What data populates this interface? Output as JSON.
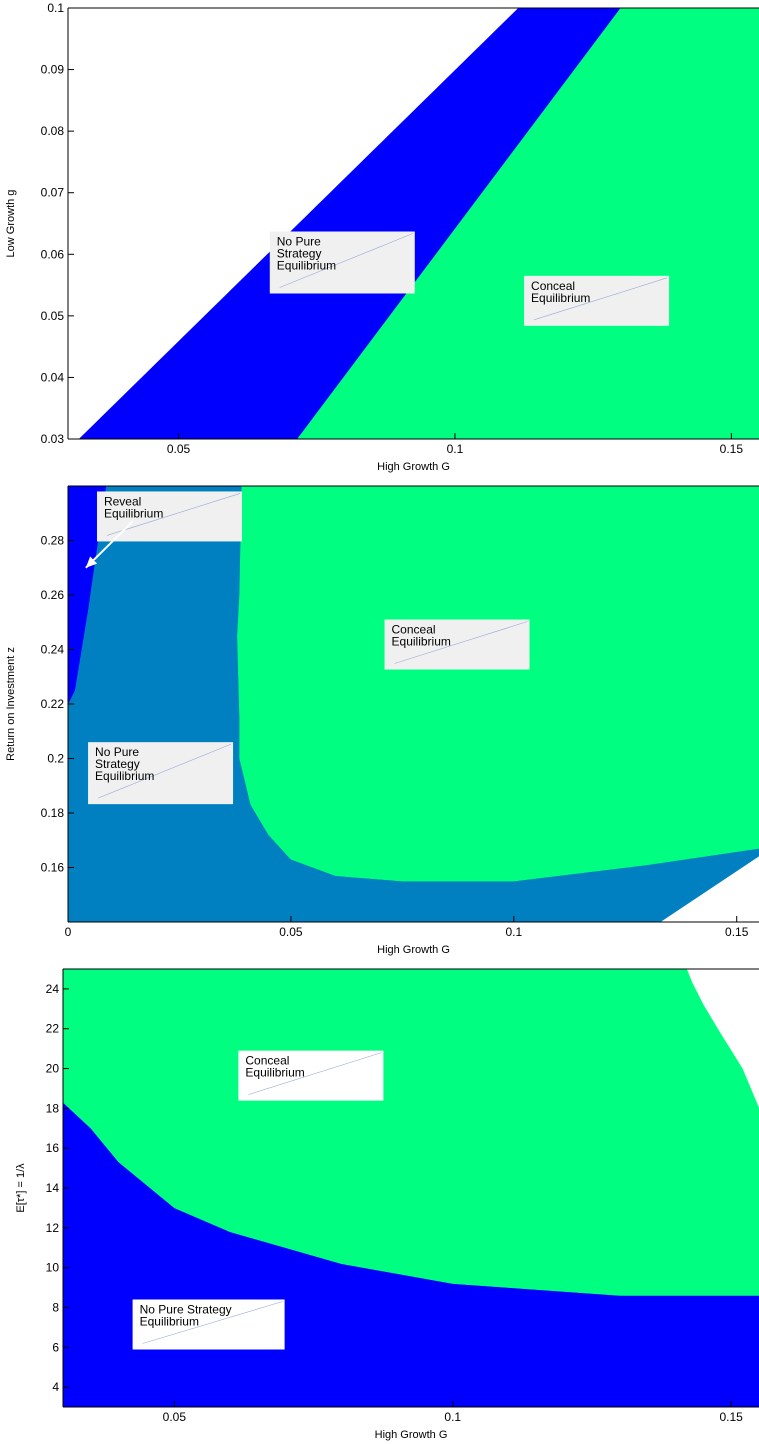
{
  "colors": {
    "conceal": "#00ff80",
    "no_pure_blue": "#0000ff",
    "no_pure_teal": "#0080c0",
    "reveal": "#0000ff",
    "label_box": "#f0f0f0",
    "label_box_white": "#ffffff"
  },
  "chart_data": [
    {
      "type": "heatmap",
      "title": "",
      "xlabel": "High Growth G",
      "ylabel": "Low Growth g",
      "xlim": [
        0.03,
        0.155
      ],
      "ylim": [
        0.03,
        0.1
      ],
      "xticks": [
        "0.05",
        "0.1",
        "0.15"
      ],
      "yticks": [
        "0.03",
        "0.04",
        "0.05",
        "0.06",
        "0.07",
        "0.08",
        "0.09",
        "0.1"
      ],
      "regions": [
        {
          "name": "No Pure Strategy Equilibrium",
          "color": "#0000ff",
          "polygon": [
            [
              0.032,
              0.03
            ],
            [
              0.0715,
              0.03
            ],
            [
              0.13,
              0.1
            ],
            [
              0.1115,
              0.1
            ]
          ]
        },
        {
          "name": "Conceal Equilibrium",
          "color": "#00ff80",
          "polygon": [
            [
              0.0715,
              0.03
            ],
            [
              0.155,
              0.03
            ],
            [
              0.155,
              0.1
            ],
            [
              0.13,
              0.1
            ]
          ]
        }
      ],
      "annotations": [
        {
          "lines": [
            "No Pure",
            "Strategy",
            "Equilibrium"
          ],
          "x": 0.0665,
          "y": 0.0637
        },
        {
          "lines": [
            "Conceal",
            "Equilibrium"
          ],
          "x": 0.1125,
          "y": 0.0565
        }
      ]
    },
    {
      "type": "heatmap",
      "title": "",
      "xlabel": "High Growth G",
      "ylabel": "Return on Investment z",
      "xlim": [
        0,
        0.155
      ],
      "ylim": [
        0.14,
        0.3
      ],
      "xticks": [
        "0",
        "0.05",
        "0.1",
        "0.15"
      ],
      "yticks": [
        "0.16",
        "0.18",
        "0.2",
        "0.22",
        "0.24",
        "0.26",
        "0.28"
      ],
      "regions": [
        {
          "name": "No Pure Strategy Equilibrium",
          "color": "#0080c0",
          "polygon": [
            [
              0,
              0.14
            ],
            [
              0,
              0.3
            ],
            [
              0.155,
              0.3
            ],
            [
              0.155,
              0.14
            ]
          ]
        },
        {
          "name": "Reveal Equilibrium",
          "color": "#0000ff",
          "polygon": [
            [
              0,
              0.22
            ],
            [
              0,
              0.3
            ],
            [
              0.0085,
              0.3
            ],
            [
              0.007,
              0.283
            ],
            [
              0.006,
              0.272
            ],
            [
              0.0045,
              0.255
            ],
            [
              0.003,
              0.24
            ],
            [
              0.0015,
              0.225
            ]
          ]
        },
        {
          "name": "Conceal Equilibrium",
          "color": "#00ff80",
          "polygon": [
            [
              0.039,
              0.3
            ],
            [
              0.155,
              0.3
            ],
            [
              0.155,
              0.167
            ],
            [
              0.13,
              0.161
            ],
            [
              0.1,
              0.155
            ],
            [
              0.075,
              0.155
            ],
            [
              0.06,
              0.157
            ],
            [
              0.05,
              0.163
            ],
            [
              0.045,
              0.172
            ],
            [
              0.041,
              0.183
            ],
            [
              0.0385,
              0.2
            ],
            [
              0.0385,
              0.215
            ],
            [
              0.038,
              0.245
            ],
            [
              0.0385,
              0.26
            ]
          ]
        },
        {
          "name": "blank",
          "color": "#ffffff",
          "polygon": [
            [
              0.133,
              0.14
            ],
            [
              0.155,
              0.14
            ],
            [
              0.155,
              0.164
            ]
          ]
        }
      ],
      "annotations": [
        {
          "lines": [
            "Reveal",
            "Equilibrium"
          ],
          "x": 0.0065,
          "y": 0.298
        },
        {
          "lines": [
            "Conceal",
            "Equilibrium"
          ],
          "x": 0.071,
          "y": 0.251
        },
        {
          "lines": [
            "No Pure",
            "Strategy",
            "Equilibrium"
          ],
          "x": 0.0045,
          "y": 0.206
        }
      ],
      "arrows": [
        {
          "from": [
            0.0145,
            0.287
          ],
          "to": [
            0.004,
            0.27
          ]
        }
      ]
    },
    {
      "type": "heatmap",
      "title": "",
      "xlabel": "High Growth G",
      "ylabel": "E[τ*] = 1/λ",
      "xlim": [
        0.03,
        0.155
      ],
      "ylim": [
        3,
        25
      ],
      "xticks": [
        "0.05",
        "0.1",
        "0.15"
      ],
      "yticks": [
        "4",
        "6",
        "8",
        "10",
        "12",
        "14",
        "16",
        "18",
        "20",
        "22",
        "24"
      ],
      "regions": [
        {
          "name": "No Pure Strategy Equilibrium",
          "color": "#0000ff",
          "polygon": [
            [
              0.03,
              3
            ],
            [
              0.155,
              3
            ],
            [
              0.155,
              8.6
            ],
            [
              0.13,
              8.6
            ],
            [
              0.1,
              9.2
            ],
            [
              0.08,
              10.2
            ],
            [
              0.06,
              11.8
            ],
            [
              0.05,
              13
            ],
            [
              0.04,
              15.3
            ],
            [
              0.035,
              17
            ],
            [
              0.03,
              18.3
            ]
          ]
        },
        {
          "name": "Conceal Equilibrium",
          "color": "#00ff80",
          "polygon": [
            [
              0.03,
              18.3
            ],
            [
              0.035,
              17
            ],
            [
              0.04,
              15.3
            ],
            [
              0.05,
              13
            ],
            [
              0.06,
              11.8
            ],
            [
              0.08,
              10.2
            ],
            [
              0.1,
              9.2
            ],
            [
              0.13,
              8.6
            ],
            [
              0.155,
              8.6
            ],
            [
              0.155,
              18
            ],
            [
              0.152,
              20
            ],
            [
              0.148,
              21.8
            ],
            [
              0.145,
              23.2
            ],
            [
              0.143,
              24.3
            ],
            [
              0.142,
              25
            ],
            [
              0.03,
              25
            ]
          ]
        }
      ],
      "annotations": [
        {
          "lines": [
            "Conceal",
            "Equilibrium"
          ],
          "x": 0.0615,
          "y": 20.9
        },
        {
          "lines": [
            "No Pure Strategy",
            "Equilibrium"
          ],
          "x": 0.0425,
          "y": 8.4
        }
      ]
    }
  ]
}
